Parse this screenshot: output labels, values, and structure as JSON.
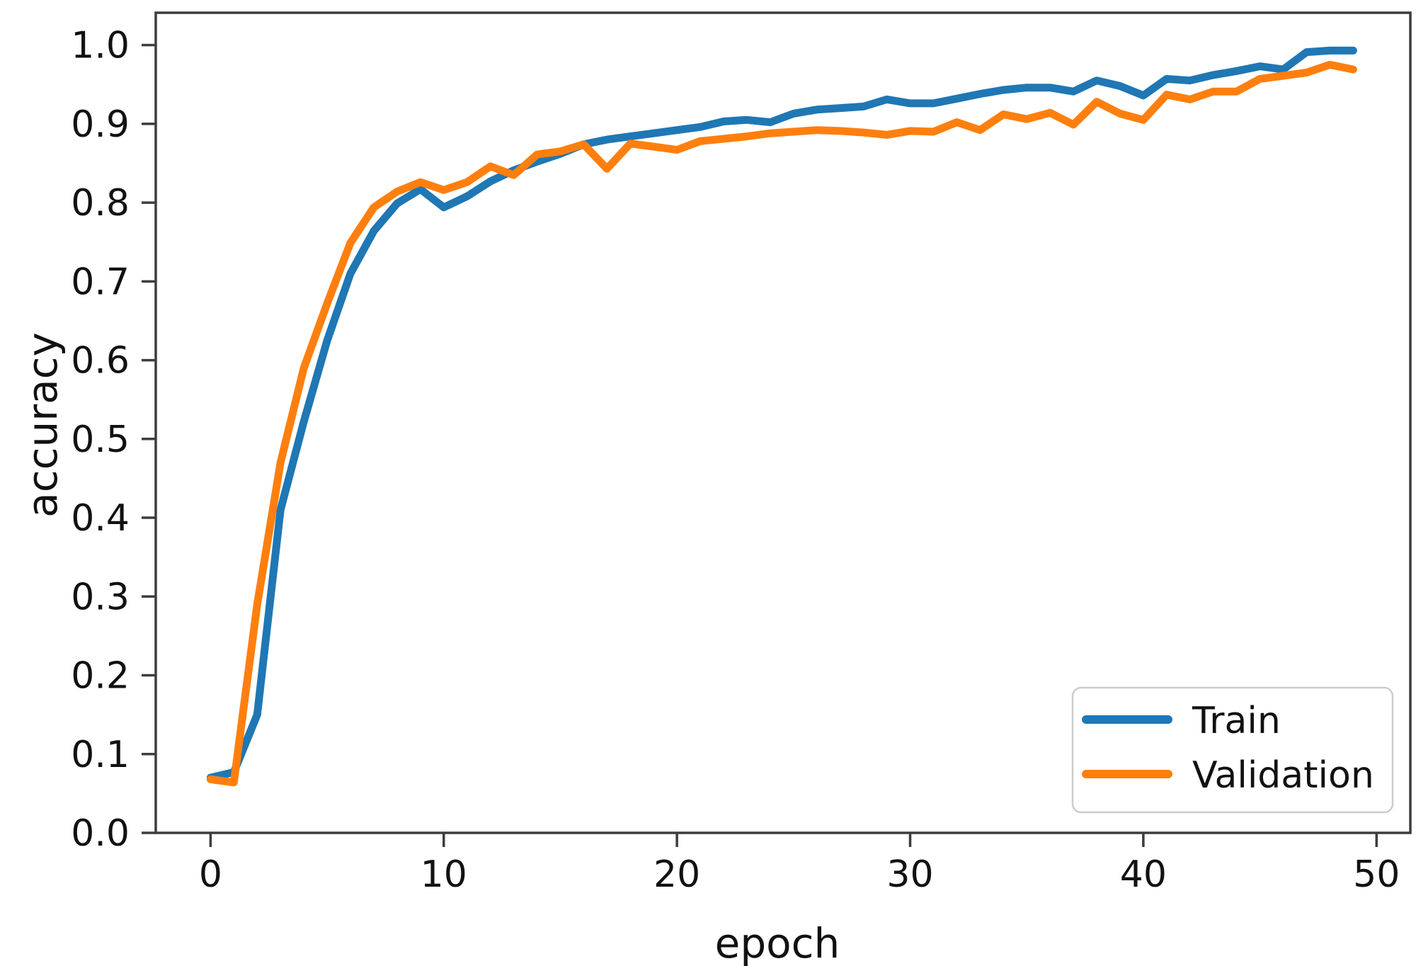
{
  "chart_data": {
    "type": "line",
    "title": "",
    "xlabel": "epoch",
    "ylabel": "accuracy",
    "grid": false,
    "legend": {
      "position": "lower right",
      "labels": [
        "Train",
        "Validation"
      ]
    },
    "xlim": [
      -2.35,
      51.45
    ],
    "ylim": [
      0,
      1.041
    ],
    "xticks": {
      "values": [
        0,
        10,
        20,
        30,
        40,
        50
      ],
      "labels": [
        "0",
        "10",
        "20",
        "30",
        "40",
        "50"
      ]
    },
    "yticks": {
      "values": [
        0.0,
        0.1,
        0.2,
        0.3,
        0.4,
        0.5,
        0.6,
        0.7,
        0.8,
        0.9,
        1.0
      ],
      "labels": [
        "0.0",
        "0.1",
        "0.2",
        "0.3",
        "0.4",
        "0.5",
        "0.6",
        "0.7",
        "0.8",
        "0.9",
        "1.0"
      ]
    },
    "x": [
      0,
      1,
      2,
      3,
      4,
      5,
      6,
      7,
      8,
      9,
      10,
      11,
      12,
      13,
      14,
      15,
      16,
      17,
      18,
      19,
      20,
      21,
      22,
      23,
      24,
      25,
      26,
      27,
      28,
      29,
      30,
      31,
      32,
      33,
      34,
      35,
      36,
      37,
      38,
      39,
      40,
      41,
      42,
      43,
      44,
      45,
      46,
      47,
      48,
      49
    ],
    "series": [
      {
        "name": "Train",
        "color": "#1f77b4",
        "values": [
          0.07,
          0.077,
          0.15,
          0.41,
          0.522,
          0.625,
          0.71,
          0.764,
          0.799,
          0.817,
          0.794,
          0.808,
          0.827,
          0.841,
          0.852,
          0.862,
          0.874,
          0.88,
          0.884,
          0.888,
          0.892,
          0.896,
          0.903,
          0.905,
          0.902,
          0.913,
          0.918,
          0.92,
          0.922,
          0.931,
          0.926,
          0.926,
          0.932,
          0.938,
          0.943,
          0.946,
          0.946,
          0.941,
          0.955,
          0.948,
          0.936,
          0.957,
          0.955,
          0.962,
          0.967,
          0.973,
          0.969,
          0.991,
          0.993,
          0.993
        ]
      },
      {
        "name": "Validation",
        "color": "#ff7f0e",
        "values": [
          0.068,
          0.064,
          0.29,
          0.47,
          0.59,
          0.672,
          0.749,
          0.794,
          0.814,
          0.826,
          0.816,
          0.826,
          0.846,
          0.835,
          0.861,
          0.865,
          0.874,
          0.843,
          0.875,
          0.871,
          0.867,
          0.878,
          0.881,
          0.884,
          0.888,
          0.89,
          0.892,
          0.891,
          0.889,
          0.886,
          0.891,
          0.89,
          0.902,
          0.892,
          0.912,
          0.906,
          0.914,
          0.899,
          0.928,
          0.913,
          0.905,
          0.937,
          0.931,
          0.941,
          0.941,
          0.957,
          0.961,
          0.965,
          0.975,
          0.969
        ]
      }
    ]
  }
}
